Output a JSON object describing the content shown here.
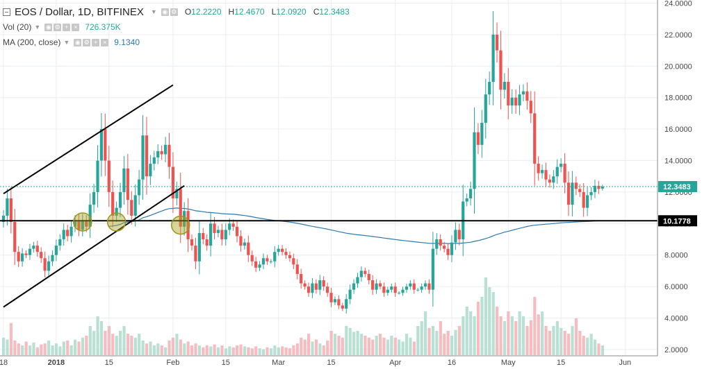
{
  "chart_data": {
    "type": "candlestick",
    "title": "EOS / Dollar, 1D, BITFINEX",
    "symbol": "EOS / Dollar",
    "interval": "1D",
    "exchange": "BITFINEX",
    "ohlc": {
      "open": "12.2220",
      "high": "12.4670",
      "low": "12.0920",
      "close": "12.3483"
    },
    "ohlc_labels": {
      "open": "O",
      "high": "H",
      "low": "L",
      "close": "C"
    },
    "indicators": [
      {
        "name": "Vol (20)",
        "value": "726.375K"
      },
      {
        "name": "MA (200, close)",
        "value": "9.1340"
      }
    ],
    "y_axis": {
      "min": 1.6,
      "max": 24.2,
      "ticks": [
        "24.0000",
        "22.0000",
        "20.0000",
        "18.0000",
        "16.0000",
        "14.0000",
        "12.0000",
        "10.0000",
        "8.0000",
        "6.0000",
        "4.0000",
        "2.0000"
      ]
    },
    "x_axis": {
      "ticks": [
        {
          "label": "18",
          "day": 0
        },
        {
          "label": "2018",
          "day": 14
        },
        {
          "label": "15",
          "day": 28
        },
        {
          "label": "Feb",
          "day": 45
        },
        {
          "label": "15",
          "day": 59
        },
        {
          "label": "Mar",
          "day": 73
        },
        {
          "label": "15",
          "day": 87
        },
        {
          "label": "Apr",
          "day": 104
        },
        {
          "label": "16",
          "day": 119
        },
        {
          "label": "May",
          "day": 134
        },
        {
          "label": "15",
          "day": 148
        },
        {
          "label": "Jun",
          "day": 165
        }
      ]
    },
    "price_labels": [
      {
        "value": 12.3483,
        "text": "12.3483",
        "color": "#26a69a"
      },
      {
        "value": 10.1778,
        "text": "10.1778",
        "color": "#000000"
      }
    ],
    "horizontal_line": 10.1778,
    "last_close": 12.3483,
    "trendlines": [
      {
        "d1": 0,
        "v1": 11.9,
        "d2": 45,
        "v2": 18.8
      },
      {
        "d1": 0,
        "v1": 4.7,
        "d2": 48,
        "v2": 12.4
      }
    ],
    "highlight_circles": [
      {
        "day": 21,
        "value": 10.1
      },
      {
        "day": 30,
        "value": 10.1
      },
      {
        "day": 47,
        "value": 9.9
      }
    ],
    "closes": [
      10.5,
      11.6,
      10.1,
      8.2,
      7.6,
      8.1,
      8.0,
      8.4,
      8.6,
      8.2,
      7.8,
      7.0,
      7.6,
      8.0,
      8.6,
      9.0,
      9.6,
      9.2,
      9.8,
      10.2,
      9.6,
      10.2,
      9.8,
      11.2,
      12.0,
      14.0,
      16.0,
      14.0,
      12.0,
      10.5,
      11.0,
      12.0,
      13.5,
      11.5,
      10.5,
      11.8,
      12.8,
      15.6,
      13.0,
      13.8,
      14.2,
      14.6,
      14.4,
      15.0,
      13.6,
      11.6,
      12.2,
      9.8,
      10.8,
      9.0,
      8.6,
      7.6,
      9.4,
      9.0,
      8.6,
      10.0,
      9.4,
      9.6,
      9.0,
      9.6,
      10.0,
      9.8,
      9.2,
      8.6,
      8.8,
      8.0,
      7.6,
      7.2,
      7.4,
      7.8,
      7.6,
      7.6,
      8.2,
      8.4,
      8.2,
      8.0,
      7.8,
      7.4,
      6.8,
      6.2,
      6.0,
      5.6,
      6.2,
      5.8,
      6.4,
      6.0,
      5.6,
      5.0,
      5.2,
      4.8,
      4.6,
      5.2,
      5.8,
      6.2,
      6.6,
      7.0,
      6.8,
      6.4,
      5.8,
      6.2,
      6.0,
      5.6,
      5.8,
      6.0,
      5.6,
      5.6,
      5.8,
      6.0,
      6.2,
      5.8,
      5.8,
      6.0,
      6.2,
      5.8,
      8.4,
      9.0,
      8.6,
      8.4,
      8.0,
      8.8,
      9.6,
      9.0,
      11.4,
      11.6,
      12.2,
      15.8,
      15.0,
      16.4,
      18.2,
      19.0,
      22.0,
      21.0,
      18.5,
      19.0,
      17.5,
      18.0,
      17.5,
      18.2,
      18.4,
      17.8,
      17.0,
      13.8,
      13.2,
      13.4,
      12.8,
      12.6,
      13.0,
      13.6,
      13.8,
      12.6,
      11.2,
      12.6,
      12.2,
      12.0,
      11.0,
      11.8,
      12.0,
      12.4,
      12.2,
      12.35
    ],
    "volumes": [
      0.18,
      0.16,
      0.33,
      0.15,
      0.12,
      0.1,
      0.14,
      0.1,
      0.13,
      0.08,
      0.11,
      0.12,
      0.15,
      0.1,
      0.12,
      0.09,
      0.14,
      0.15,
      0.1,
      0.16,
      0.14,
      0.18,
      0.2,
      0.3,
      0.25,
      0.4,
      0.35,
      0.25,
      0.3,
      0.22,
      0.2,
      0.25,
      0.3,
      0.22,
      0.2,
      0.18,
      0.22,
      0.15,
      0.12,
      0.14,
      0.1,
      0.12,
      0.1,
      0.08,
      0.15,
      0.18,
      0.22,
      0.16,
      0.12,
      0.14,
      0.1,
      0.12,
      0.1,
      0.08,
      0.1,
      0.09,
      0.11,
      0.08,
      0.1,
      0.07,
      0.09,
      0.08,
      0.1,
      0.11,
      0.09,
      0.08,
      0.07,
      0.09,
      0.07,
      0.06,
      0.08,
      0.07,
      0.1,
      0.08,
      0.09,
      0.08,
      0.07,
      0.1,
      0.12,
      0.18,
      0.16,
      0.22,
      0.14,
      0.16,
      0.12,
      0.1,
      0.15,
      0.25,
      0.22,
      0.2,
      0.18,
      0.3,
      0.28,
      0.24,
      0.25,
      0.22,
      0.2,
      0.18,
      0.16,
      0.2,
      0.22,
      0.18,
      0.16,
      0.2,
      0.18,
      0.16,
      0.14,
      0.22,
      0.18,
      0.14,
      0.3,
      0.35,
      0.45,
      0.28,
      0.3,
      0.25,
      0.35,
      0.22,
      0.25,
      0.2,
      0.26,
      0.3,
      0.4,
      0.5,
      0.45,
      0.4,
      0.55,
      0.6,
      0.8,
      0.7,
      0.65,
      0.5,
      0.4,
      0.35,
      0.45,
      0.4,
      0.35,
      0.45,
      0.4,
      0.3,
      0.36,
      0.6,
      0.42,
      0.45,
      0.3,
      0.25,
      0.3,
      0.35,
      0.28,
      0.25,
      0.22,
      0.3,
      0.38,
      0.25,
      0.2,
      0.18,
      0.22,
      0.16,
      0.12,
      0.1
    ]
  },
  "colors": {
    "up": "#26a69a",
    "down": "#ef5350",
    "up_volume": "#b8e0d3",
    "down_volume": "#f6bcc0",
    "ma_line": "#2a7ab0",
    "grid": "#eaeef2",
    "axis_text": "#444444"
  }
}
